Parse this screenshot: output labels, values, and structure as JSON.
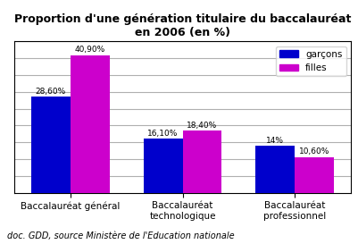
{
  "chart_data": {
    "type": "bar",
    "title": "Proportion d'une génération titulaire du baccalauréat en 2006 (en %)",
    "subtitle": "doc. GDD, source Ministère de l'Education nationale",
    "categories": [
      "Baccalauréat général",
      "Baccalauréat\ntechnologique",
      "Baccalauréat\nprofessionnel"
    ],
    "series": [
      {
        "name": "garçons",
        "color": "#0000CC",
        "values": [
          28.6,
          16.1,
          14.0
        ],
        "value_labels": [
          "28,60%",
          "16,10%",
          "14%"
        ]
      },
      {
        "name": "filles",
        "color": "#CC00CC",
        "values": [
          40.9,
          18.4,
          10.6
        ],
        "value_labels": [
          "40,90%",
          "18,40%",
          "10,60%"
        ]
      }
    ],
    "ylim": [
      0,
      45
    ],
    "yticks": [
      5,
      10,
      15,
      20,
      25,
      30,
      35,
      40,
      45
    ],
    "grid": true,
    "legend": "upper right",
    "data_labels": true,
    "tick_labels": "x"
  }
}
